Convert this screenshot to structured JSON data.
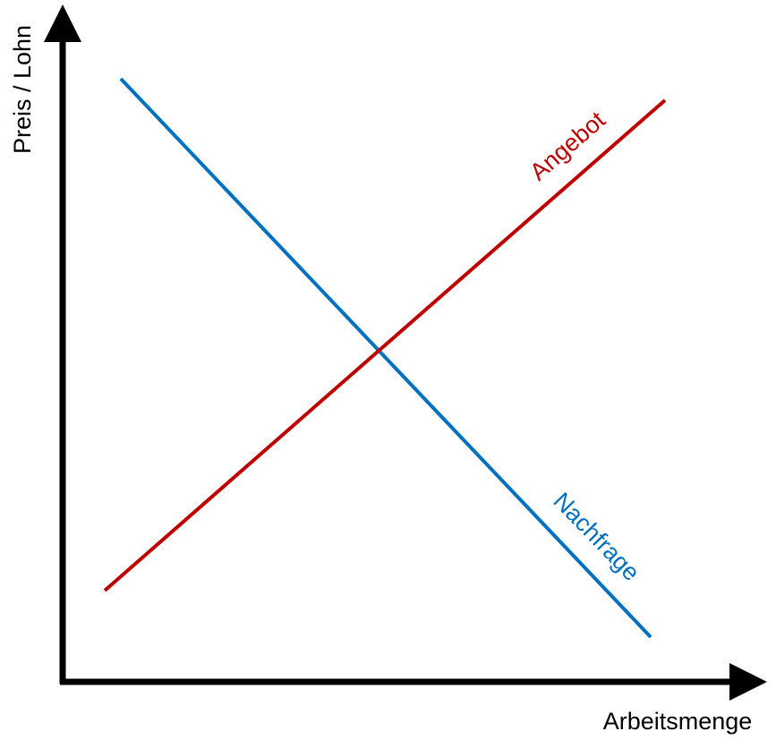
{
  "axes": {
    "y_label": "Preis / Lohn",
    "x_label": "Arbeitsmenge"
  },
  "curves": [
    {
      "label": "Angebot"
    },
    {
      "label": "Nachfrage"
    }
  ]
}
